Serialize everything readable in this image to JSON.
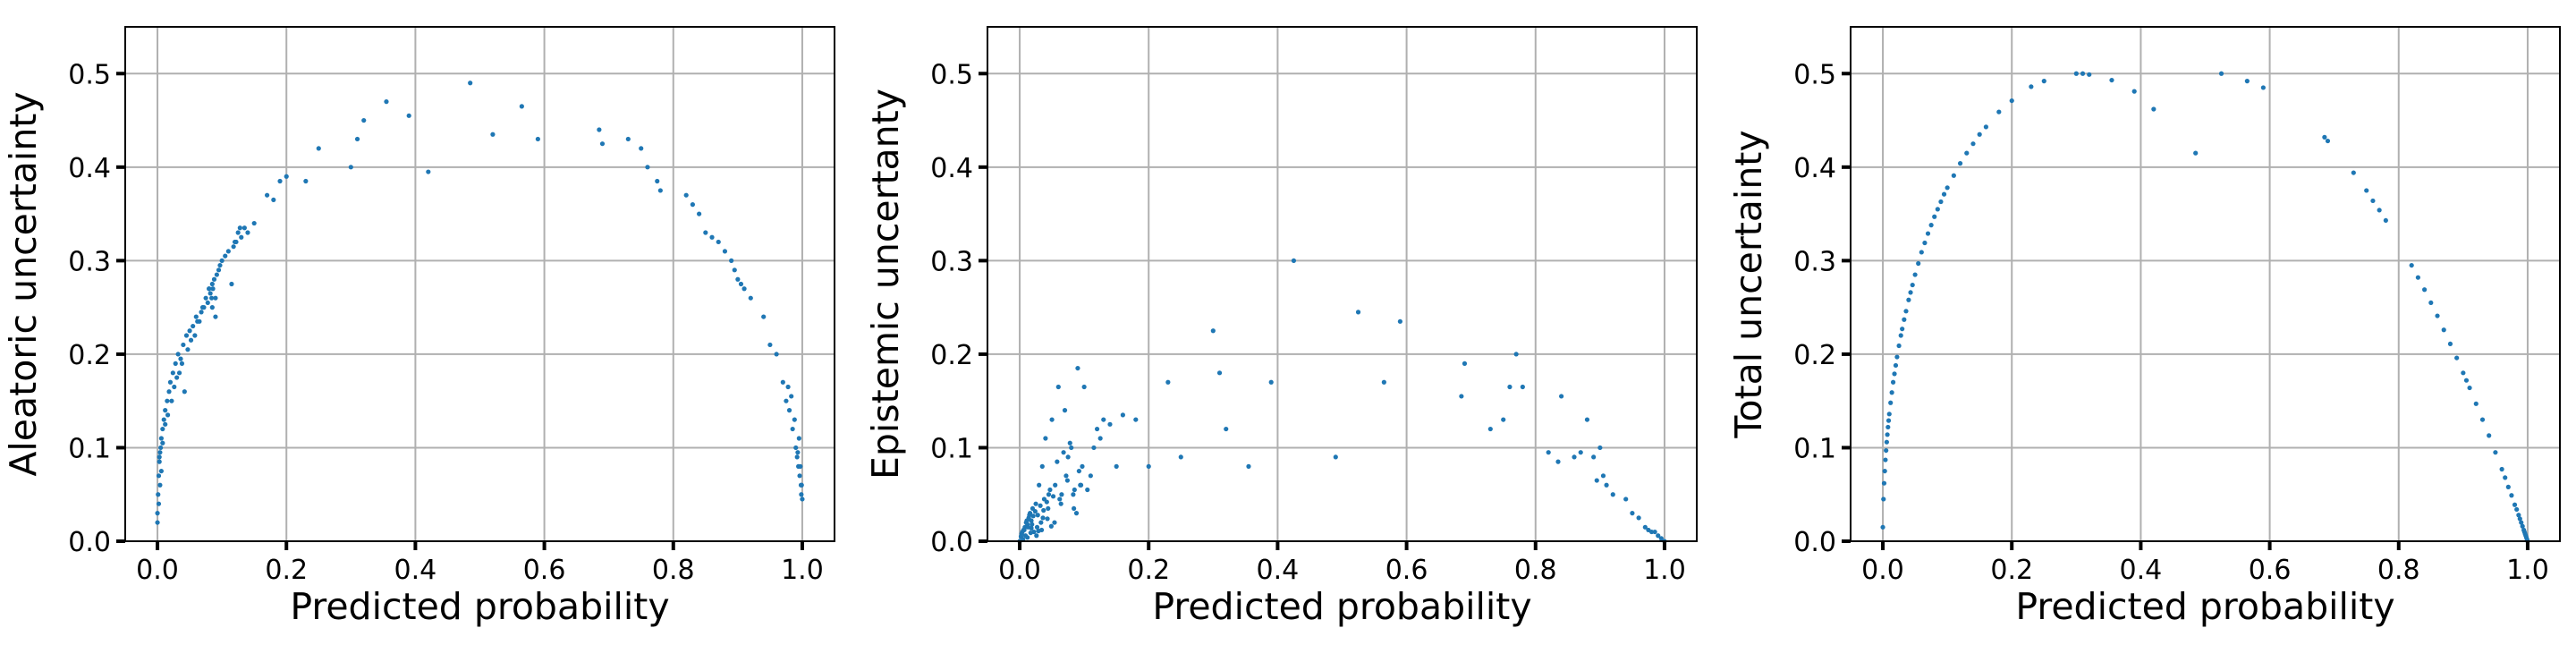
{
  "chart_data": [
    {
      "type": "scatter",
      "xlabel": "Predicted probability",
      "ylabel": "Aleatoric uncertainty",
      "xlim": [
        -0.05,
        1.05
      ],
      "ylim": [
        0,
        0.55
      ],
      "xticks": [
        0.0,
        0.2,
        0.4,
        0.6,
        0.8,
        1.0
      ],
      "xtick_labels": [
        "0.0",
        "0.2",
        "0.4",
        "0.6",
        "0.8",
        "1.0"
      ],
      "yticks": [
        0.0,
        0.1,
        0.2,
        0.3,
        0.4,
        0.5
      ],
      "ytick_labels": [
        "0.0",
        "0.1",
        "0.2",
        "0.3",
        "0.4",
        "0.5"
      ],
      "grid": true,
      "marker_color": "#1f77b4",
      "series": [
        {
          "x": [
            0.0,
            0.001,
            0.002,
            0.003,
            0.004,
            0.005,
            0.006,
            0.008,
            0.01,
            0.012,
            0.015,
            0.018,
            0.02,
            0.024,
            0.028,
            0.032,
            0.036,
            0.04,
            0.045,
            0.05,
            0.055,
            0.06,
            0.065,
            0.07,
            0.075,
            0.08,
            0.082,
            0.085,
            0.088,
            0.09,
            0.095,
            0.1,
            0.11,
            0.115,
            0.12,
            0.125,
            0.13,
            0.135,
            0.14,
            0.15,
            0.17,
            0.18,
            0.19,
            0.2,
            0.23,
            0.25,
            0.3,
            0.31,
            0.32,
            0.355,
            0.39,
            0.42,
            0.485,
            0.52,
            0.565,
            0.59,
            0.685,
            0.69,
            0.73,
            0.75,
            0.76,
            0.775,
            0.78,
            0.82,
            0.83,
            0.84,
            0.85,
            0.86,
            0.87,
            0.88,
            0.89,
            0.895,
            0.9,
            0.905,
            0.91,
            0.92,
            0.94,
            0.95,
            0.96,
            0.97,
            0.975,
            0.98,
            0.985,
            0.99,
            0.992,
            0.994,
            0.996,
            0.998,
            1.0,
            0.0,
            0.002,
            0.004,
            0.006,
            0.003,
            0.008,
            0.012,
            0.016,
            0.022,
            0.026,
            0.03,
            0.034,
            0.038,
            0.042,
            0.047,
            0.052,
            0.058,
            0.062,
            0.068,
            0.072,
            0.078,
            0.084,
            0.086,
            0.092,
            0.097,
            0.105,
            0.118,
            0.122,
            0.128,
            0.085,
            0.08,
            0.09,
            0.995,
            0.997,
            0.999,
            0.988,
            0.983,
            0.978,
            0.993,
            0.9985
          ],
          "y": [
            0.03,
            0.05,
            0.07,
            0.085,
            0.095,
            0.1,
            0.11,
            0.12,
            0.13,
            0.14,
            0.15,
            0.16,
            0.17,
            0.18,
            0.19,
            0.2,
            0.195,
            0.21,
            0.22,
            0.225,
            0.23,
            0.24,
            0.235,
            0.25,
            0.26,
            0.27,
            0.265,
            0.275,
            0.28,
            0.26,
            0.29,
            0.3,
            0.31,
            0.275,
            0.32,
            0.33,
            0.325,
            0.335,
            0.33,
            0.34,
            0.37,
            0.365,
            0.385,
            0.39,
            0.385,
            0.42,
            0.4,
            0.43,
            0.45,
            0.47,
            0.455,
            0.395,
            0.49,
            0.435,
            0.465,
            0.43,
            0.44,
            0.425,
            0.43,
            0.42,
            0.4,
            0.385,
            0.375,
            0.37,
            0.36,
            0.35,
            0.33,
            0.325,
            0.32,
            0.31,
            0.3,
            0.29,
            0.28,
            0.275,
            0.27,
            0.26,
            0.24,
            0.21,
            0.2,
            0.17,
            0.15,
            0.14,
            0.12,
            0.1,
            0.09,
            0.08,
            0.07,
            0.06,
            0.045,
            0.02,
            0.04,
            0.06,
            0.075,
            0.09,
            0.105,
            0.125,
            0.135,
            0.15,
            0.165,
            0.175,
            0.18,
            0.19,
            0.16,
            0.205,
            0.215,
            0.22,
            0.235,
            0.245,
            0.25,
            0.255,
            0.26,
            0.27,
            0.285,
            0.295,
            0.305,
            0.315,
            0.32,
            0.335,
            0.25,
            0.27,
            0.24,
            0.11,
            0.08,
            0.06,
            0.13,
            0.155,
            0.165,
            0.095,
            0.05
          ]
        }
      ]
    },
    {
      "type": "scatter",
      "xlabel": "Predicted probability",
      "ylabel": "Epistemic uncertanty",
      "xlim": [
        -0.05,
        1.05
      ],
      "ylim": [
        0,
        0.55
      ],
      "xticks": [
        0.0,
        0.2,
        0.4,
        0.6,
        0.8,
        1.0
      ],
      "xtick_labels": [
        "0.0",
        "0.2",
        "0.4",
        "0.6",
        "0.8",
        "1.0"
      ],
      "yticks": [
        0.0,
        0.1,
        0.2,
        0.3,
        0.4,
        0.5
      ],
      "ytick_labels": [
        "0.0",
        "0.1",
        "0.2",
        "0.3",
        "0.4",
        "0.5"
      ],
      "grid": true,
      "marker_color": "#1f77b4",
      "series": [
        {
          "x": [
            0.0,
            0.002,
            0.004,
            0.006,
            0.008,
            0.01,
            0.012,
            0.014,
            0.016,
            0.018,
            0.02,
            0.022,
            0.025,
            0.028,
            0.03,
            0.033,
            0.035,
            0.038,
            0.04,
            0.045,
            0.05,
            0.055,
            0.06,
            0.065,
            0.07,
            0.075,
            0.08,
            0.085,
            0.09,
            0.095,
            0.1,
            0.11,
            0.12,
            0.13,
            0.14,
            0.15,
            0.16,
            0.18,
            0.2,
            0.23,
            0.25,
            0.3,
            0.31,
            0.32,
            0.355,
            0.39,
            0.425,
            0.49,
            0.525,
            0.565,
            0.59,
            0.685,
            0.69,
            0.73,
            0.75,
            0.76,
            0.77,
            0.78,
            0.82,
            0.835,
            0.84,
            0.86,
            0.87,
            0.88,
            0.89,
            0.895,
            0.9,
            0.905,
            0.91,
            0.92,
            0.94,
            0.95,
            0.96,
            0.97,
            0.975,
            0.98,
            0.985,
            0.99,
            0.995,
            1.0,
            0.003,
            0.007,
            0.011,
            0.015,
            0.019,
            0.024,
            0.027,
            0.032,
            0.036,
            0.042,
            0.047,
            0.052,
            0.058,
            0.062,
            0.068,
            0.072,
            0.078,
            0.083,
            0.088,
            0.092,
            0.097,
            0.105,
            0.115,
            0.125,
            0.012,
            0.018,
            0.026,
            0.034,
            0.044,
            0.054,
            0.064,
            0.074,
            0.084,
            0.094,
            0.005,
            0.009,
            0.013,
            0.017,
            0.021,
            0.029,
            0.037,
            0.043,
            0.049
          ],
          "y": [
            0.0,
            0.005,
            0.01,
            0.012,
            0.015,
            0.02,
            0.018,
            0.025,
            0.03,
            0.022,
            0.035,
            0.01,
            0.04,
            0.028,
            0.06,
            0.02,
            0.08,
            0.045,
            0.11,
            0.05,
            0.13,
            0.06,
            0.165,
            0.05,
            0.14,
            0.09,
            0.1,
            0.055,
            0.185,
            0.06,
            0.165,
            0.07,
            0.12,
            0.13,
            0.125,
            0.08,
            0.135,
            0.13,
            0.08,
            0.17,
            0.09,
            0.225,
            0.18,
            0.12,
            0.08,
            0.17,
            0.3,
            0.09,
            0.245,
            0.17,
            0.235,
            0.155,
            0.19,
            0.12,
            0.13,
            0.165,
            0.2,
            0.165,
            0.095,
            0.085,
            0.155,
            0.09,
            0.095,
            0.13,
            0.09,
            0.065,
            0.1,
            0.07,
            0.06,
            0.05,
            0.045,
            0.03,
            0.025,
            0.015,
            0.012,
            0.01,
            0.01,
            0.006,
            0.003,
            0.0,
            0.008,
            0.012,
            0.022,
            0.028,
            0.018,
            0.032,
            0.015,
            0.038,
            0.025,
            0.042,
            0.055,
            0.048,
            0.085,
            0.045,
            0.095,
            0.07,
            0.105,
            0.05,
            0.03,
            0.075,
            0.08,
            0.055,
            0.1,
            0.11,
            0.004,
            0.014,
            0.006,
            0.012,
            0.035,
            0.02,
            0.04,
            0.065,
            0.035,
            0.06,
            0.002,
            0.006,
            0.015,
            0.009,
            0.027,
            0.011,
            0.033,
            0.024,
            0.016
          ]
        }
      ]
    },
    {
      "type": "scatter",
      "xlabel": "Predicted probability",
      "ylabel": "Total uncertainty",
      "xlim": [
        -0.05,
        1.05
      ],
      "ylim": [
        0,
        0.55
      ],
      "xticks": [
        0.0,
        0.2,
        0.4,
        0.6,
        0.8,
        1.0
      ],
      "xtick_labels": [
        "0.0",
        "0.2",
        "0.4",
        "0.6",
        "0.8",
        "1.0"
      ],
      "yticks": [
        0.0,
        0.1,
        0.2,
        0.3,
        0.4,
        0.5
      ],
      "ytick_labels": [
        "0.0",
        "0.1",
        "0.2",
        "0.3",
        "0.4",
        "0.5"
      ],
      "grid": true,
      "marker_color": "#1f77b4",
      "series": [
        {
          "x": [
            0.0,
            0.001,
            0.002,
            0.003,
            0.004,
            0.005,
            0.006,
            0.007,
            0.008,
            0.009,
            0.01,
            0.012,
            0.014,
            0.016,
            0.018,
            0.02,
            0.022,
            0.025,
            0.028,
            0.03,
            0.033,
            0.036,
            0.04,
            0.043,
            0.046,
            0.05,
            0.055,
            0.06,
            0.065,
            0.07,
            0.075,
            0.08,
            0.085,
            0.09,
            0.095,
            0.1,
            0.11,
            0.12,
            0.13,
            0.14,
            0.15,
            0.16,
            0.18,
            0.2,
            0.23,
            0.25,
            0.3,
            0.31,
            0.32,
            0.355,
            0.39,
            0.42,
            0.485,
            0.525,
            0.565,
            0.59,
            0.685,
            0.69,
            0.73,
            0.75,
            0.76,
            0.77,
            0.78,
            0.82,
            0.83,
            0.84,
            0.85,
            0.86,
            0.87,
            0.88,
            0.89,
            0.9,
            0.905,
            0.91,
            0.92,
            0.93,
            0.94,
            0.95,
            0.96,
            0.965,
            0.97,
            0.975,
            0.98,
            0.983,
            0.986,
            0.988,
            0.99,
            0.992,
            0.994,
            0.995,
            0.996,
            0.997,
            0.998,
            0.999,
            1.0
          ],
          "y": [
            0.015,
            0.045,
            0.062,
            0.075,
            0.087,
            0.097,
            0.106,
            0.114,
            0.122,
            0.129,
            0.136,
            0.148,
            0.159,
            0.17,
            0.179,
            0.188,
            0.197,
            0.209,
            0.22,
            0.227,
            0.237,
            0.246,
            0.258,
            0.266,
            0.274,
            0.285,
            0.297,
            0.309,
            0.319,
            0.329,
            0.338,
            0.347,
            0.355,
            0.363,
            0.371,
            0.378,
            0.391,
            0.404,
            0.415,
            0.425,
            0.435,
            0.443,
            0.459,
            0.471,
            0.486,
            0.492,
            0.5,
            0.5,
            0.499,
            0.493,
            0.481,
            0.462,
            0.415,
            0.5,
            0.492,
            0.485,
            0.432,
            0.428,
            0.394,
            0.375,
            0.364,
            0.354,
            0.343,
            0.295,
            0.282,
            0.269,
            0.255,
            0.241,
            0.226,
            0.211,
            0.196,
            0.18,
            0.172,
            0.164,
            0.147,
            0.13,
            0.113,
            0.095,
            0.077,
            0.068,
            0.058,
            0.049,
            0.039,
            0.034,
            0.028,
            0.024,
            0.02,
            0.016,
            0.012,
            0.01,
            0.008,
            0.006,
            0.004,
            0.002,
            0.0
          ]
        }
      ]
    }
  ]
}
